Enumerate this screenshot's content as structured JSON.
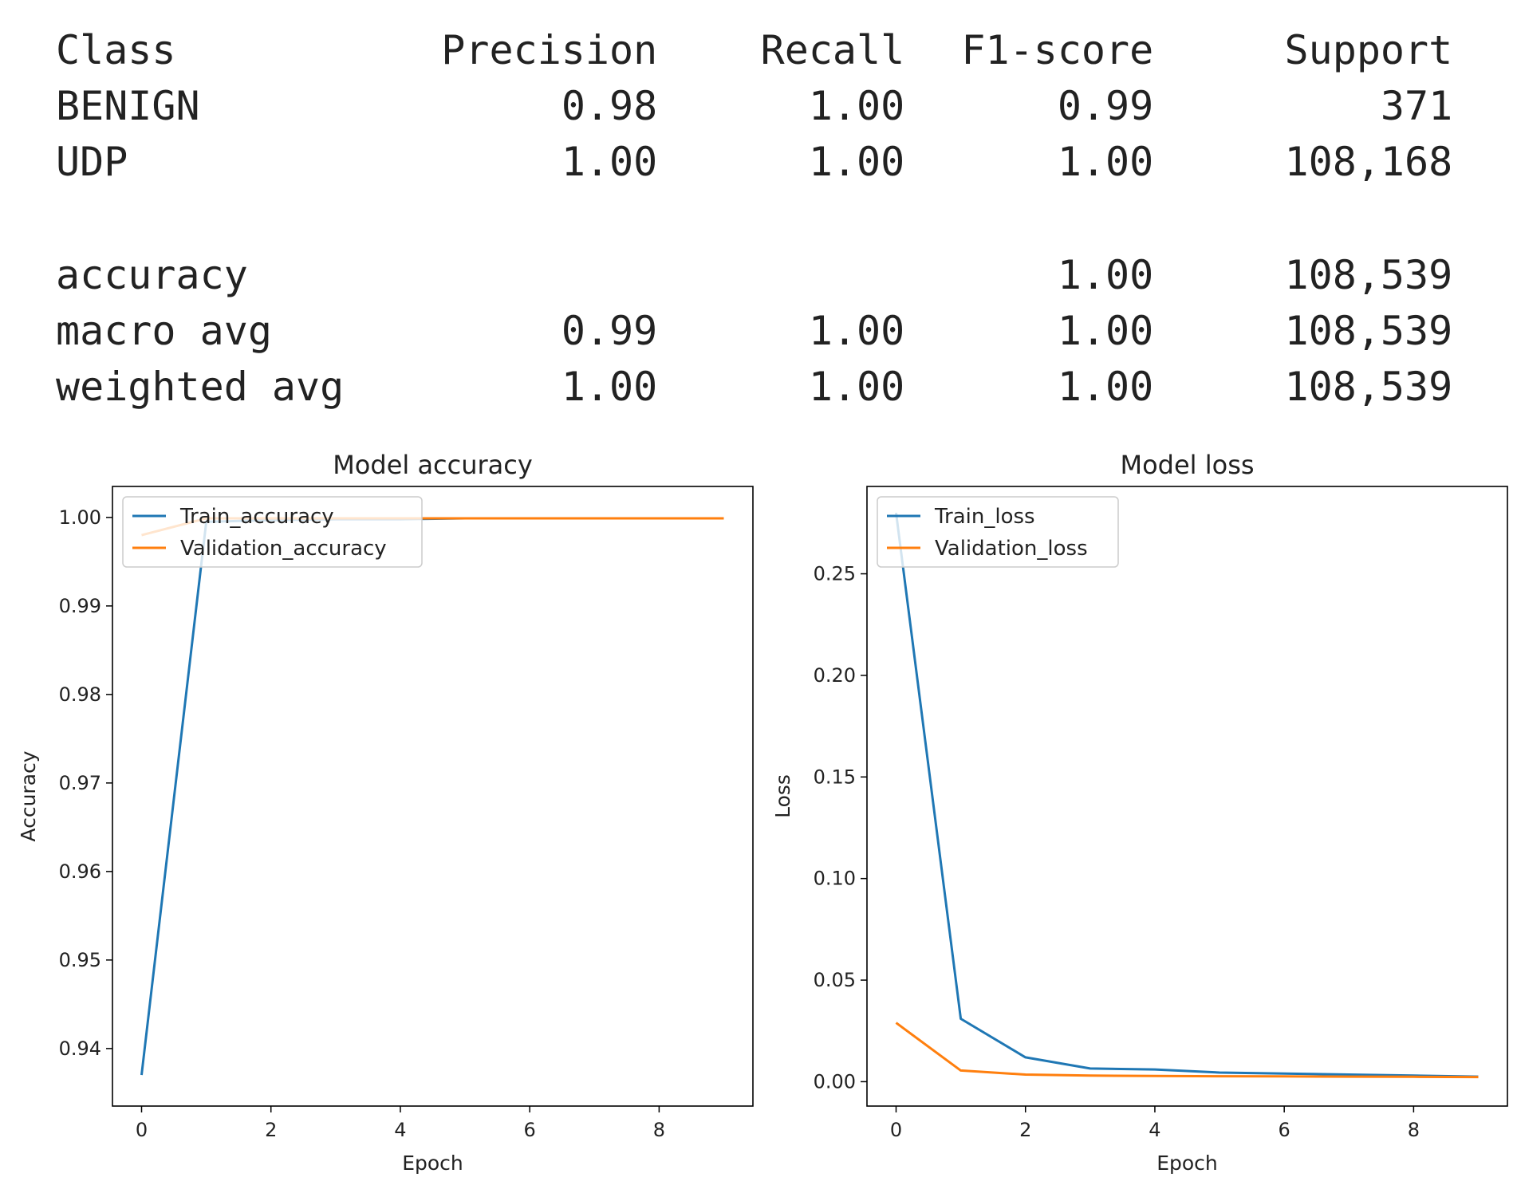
{
  "report": {
    "headers": [
      "Class",
      "Precision",
      "Recall",
      "F1-score",
      "Support"
    ],
    "rows": [
      [
        "BENIGN",
        "0.98",
        "1.00",
        "0.99",
        "371"
      ],
      [
        "UDP",
        "1.00",
        "1.00",
        "1.00",
        "108,168"
      ]
    ],
    "summary": [
      [
        "accuracy",
        "",
        "",
        "1.00",
        "108,539"
      ],
      [
        "macro avg",
        "0.99",
        "1.00",
        "1.00",
        "108,539"
      ],
      [
        "weighted avg",
        "1.00",
        "1.00",
        "1.00",
        "108,539"
      ]
    ]
  },
  "chart_data": [
    {
      "type": "line",
      "title": "Model accuracy",
      "xlabel": "Epoch",
      "ylabel": "Accuracy",
      "xlim": [
        -0.45,
        9.45
      ],
      "ylim": [
        0.9335,
        1.0035
      ],
      "xticks": [
        0,
        2,
        4,
        6,
        8
      ],
      "yticks": [
        0.94,
        0.95,
        0.96,
        0.97,
        0.98,
        0.99,
        1.0
      ],
      "legend": "upper-left",
      "x": [
        0,
        1,
        2,
        3,
        4,
        5,
        6,
        7,
        8,
        9
      ],
      "series": [
        {
          "name": "Train_accuracy",
          "color": "#1f77b4",
          "values": [
            0.937,
            0.9995,
            0.9997,
            0.9998,
            0.9998,
            0.9999,
            0.9999,
            0.9999,
            0.9999,
            0.9999
          ]
        },
        {
          "name": "Validation_accuracy",
          "color": "#ff7f0e",
          "values": [
            0.998,
            0.9999,
            0.9999,
            0.9999,
            0.9999,
            0.9999,
            0.9999,
            0.9999,
            0.9999,
            0.9999
          ]
        }
      ]
    },
    {
      "type": "line",
      "title": "Model loss",
      "xlabel": "Epoch",
      "ylabel": "Loss",
      "xlim": [
        -0.45,
        9.45
      ],
      "ylim": [
        -0.012,
        0.293
      ],
      "xticks": [
        0,
        2,
        4,
        6,
        8
      ],
      "yticks": [
        0.0,
        0.05,
        0.1,
        0.15,
        0.2,
        0.25
      ],
      "legend": "upper-left",
      "x": [
        0,
        1,
        2,
        3,
        4,
        5,
        6,
        7,
        8,
        9
      ],
      "series": [
        {
          "name": "Train_loss",
          "color": "#1f77b4",
          "values": [
            0.28,
            0.031,
            0.012,
            0.0065,
            0.006,
            0.0045,
            0.004,
            0.0035,
            0.003,
            0.0025
          ]
        },
        {
          "name": "Validation_loss",
          "color": "#ff7f0e",
          "values": [
            0.029,
            0.0055,
            0.0035,
            0.003,
            0.0028,
            0.0027,
            0.0026,
            0.0025,
            0.0024,
            0.0023
          ]
        }
      ]
    }
  ]
}
